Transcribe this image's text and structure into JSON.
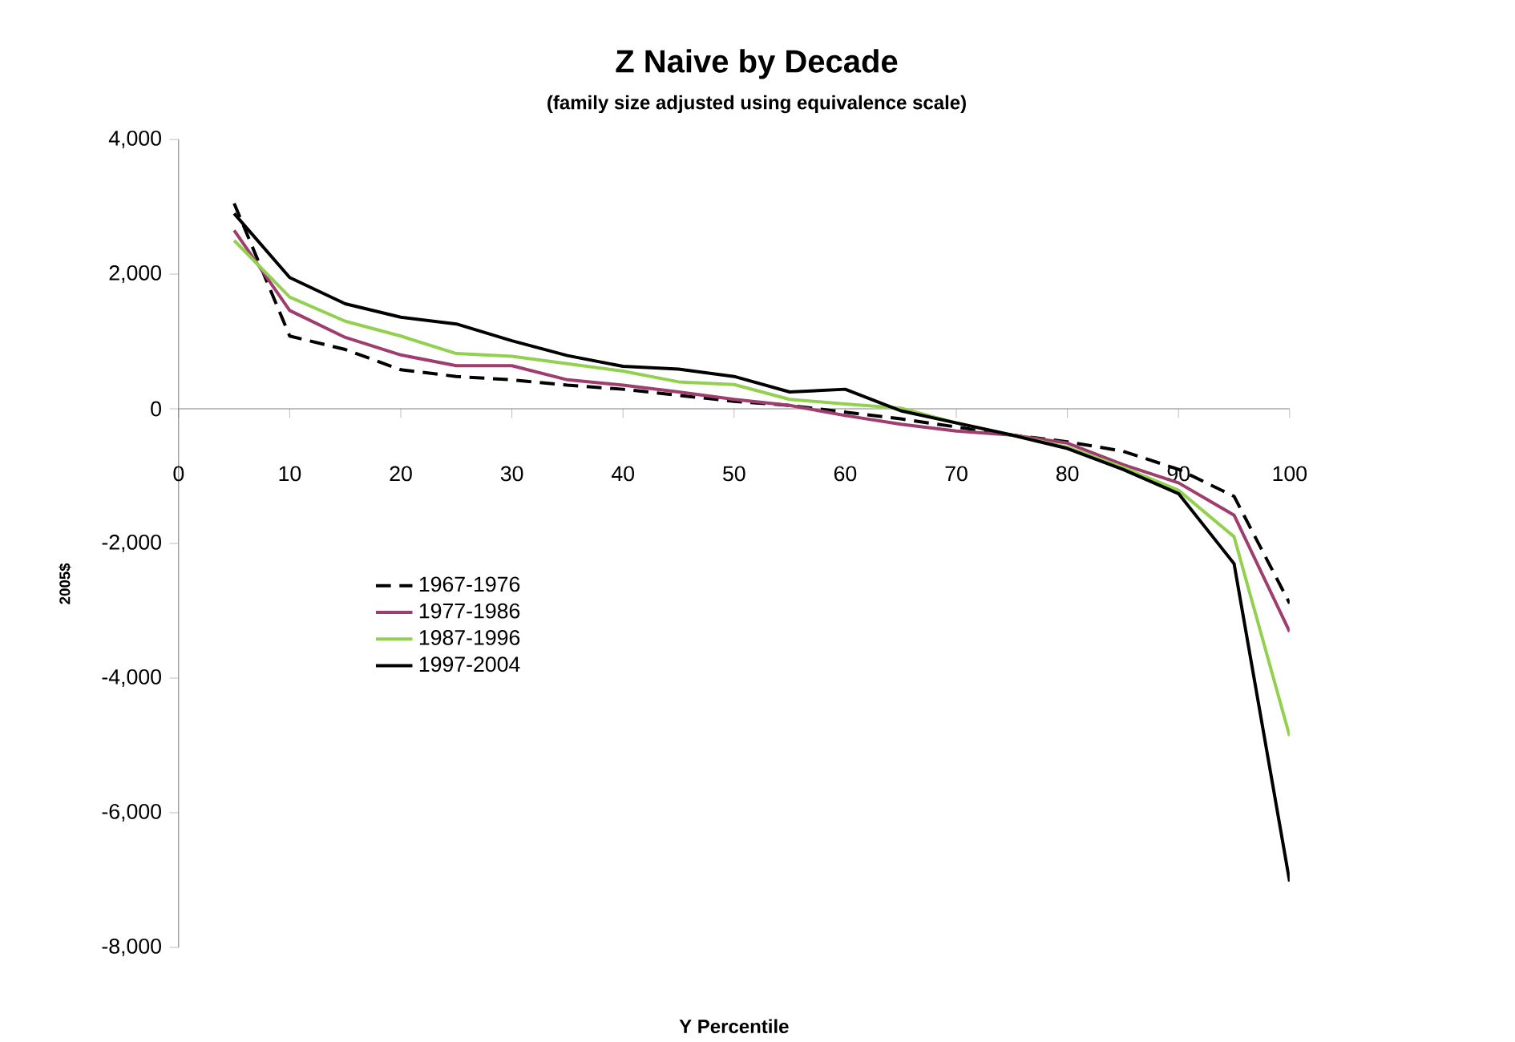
{
  "chart_data": {
    "type": "line",
    "title": "Z Naive by Decade",
    "subtitle": "(family size adjusted using equivalence scale)",
    "xlabel": "Y Percentile",
    "ylabel": "2005$",
    "x": [
      5,
      10,
      15,
      20,
      25,
      30,
      35,
      40,
      45,
      50,
      55,
      60,
      65,
      70,
      75,
      80,
      85,
      90,
      95,
      100
    ],
    "series": [
      {
        "name": "1967-1976",
        "color": "#000000",
        "line_style": "dashed",
        "values": [
          3050,
          1080,
          880,
          580,
          480,
          430,
          350,
          290,
          200,
          110,
          50,
          -50,
          -150,
          -270,
          -390,
          -490,
          -630,
          -900,
          -1300,
          -2890
        ]
      },
      {
        "name": "1977-1986",
        "color": "#9e3d6e",
        "line_style": "solid",
        "values": [
          2650,
          1460,
          1060,
          800,
          640,
          640,
          430,
          350,
          250,
          140,
          50,
          -100,
          -230,
          -330,
          -390,
          -510,
          -830,
          -1100,
          -1580,
          -3310
        ]
      },
      {
        "name": "1987-1996",
        "color": "#92d050",
        "line_style": "solid",
        "values": [
          2500,
          1660,
          1300,
          1080,
          820,
          780,
          670,
          560,
          400,
          360,
          140,
          70,
          10,
          -210,
          -390,
          -570,
          -870,
          -1210,
          -1900,
          -4860
        ]
      },
      {
        "name": "1997-2004",
        "color": "#000000",
        "line_style": "solid",
        "values": [
          2900,
          1950,
          1560,
          1360,
          1260,
          1010,
          790,
          630,
          590,
          480,
          250,
          290,
          -30,
          -210,
          -390,
          -590,
          -900,
          -1260,
          -2300,
          -7020
        ]
      }
    ],
    "xlim": [
      0,
      100
    ],
    "ylim": [
      -8000,
      4000
    ],
    "xticks": [
      0,
      10,
      20,
      30,
      40,
      50,
      60,
      70,
      80,
      90,
      100
    ],
    "yticks": [
      {
        "value": -8000,
        "label": "-8,000"
      },
      {
        "value": -6000,
        "label": "-6,000"
      },
      {
        "value": -4000,
        "label": "-4,000"
      },
      {
        "value": -2000,
        "label": "-2,000"
      },
      {
        "value": 0,
        "label": "0"
      },
      {
        "value": 2000,
        "label": "2,000"
      },
      {
        "value": 4000,
        "label": "4,000"
      }
    ],
    "legend": "left",
    "marker": "none"
  }
}
